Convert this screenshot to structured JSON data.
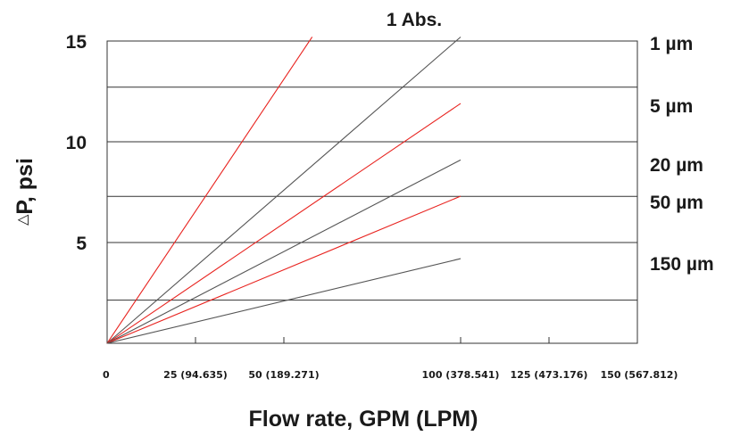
{
  "chart_data": {
    "type": "line",
    "xlabel": "Flow rate, GPM (LPM)",
    "ylabel": "P, psi",
    "ylabel_prefix": "△",
    "xlim": [
      0,
      150
    ],
    "ylim": [
      0,
      15
    ],
    "grid_y": [
      2.14,
      5,
      7.29,
      10,
      12.71
    ],
    "x_tick_values": [
      0,
      25,
      50,
      100,
      125,
      150
    ],
    "x_tick_labels": [
      "0",
      "25 (94.635)",
      "50 (189.271)",
      "100 (378.541)",
      "125 (473.176)",
      "150 (567.812)"
    ],
    "y_tick_values": [
      5,
      10,
      15
    ],
    "y_tick_labels": [
      "5",
      "10",
      "15"
    ],
    "series": [
      {
        "name": "1 Abs.",
        "color": "#e8231f",
        "x": [
          0,
          58
        ],
        "y": [
          0,
          15.2
        ]
      },
      {
        "name": "1 µm",
        "color": "#555555",
        "x": [
          0,
          100
        ],
        "y": [
          0,
          15.2
        ]
      },
      {
        "name": "5 µm",
        "color": "#e8231f",
        "x": [
          0,
          100
        ],
        "y": [
          0,
          11.9
        ]
      },
      {
        "name": "20 µm",
        "color": "#555555",
        "x": [
          0,
          100
        ],
        "y": [
          0,
          9.1
        ]
      },
      {
        "name": "50 µm",
        "color": "#e8231f",
        "x": [
          0,
          100
        ],
        "y": [
          0,
          7.3
        ]
      },
      {
        "name": "150 µm",
        "color": "#555555",
        "x": [
          0,
          100
        ],
        "y": [
          0,
          4.2
        ]
      }
    ]
  }
}
